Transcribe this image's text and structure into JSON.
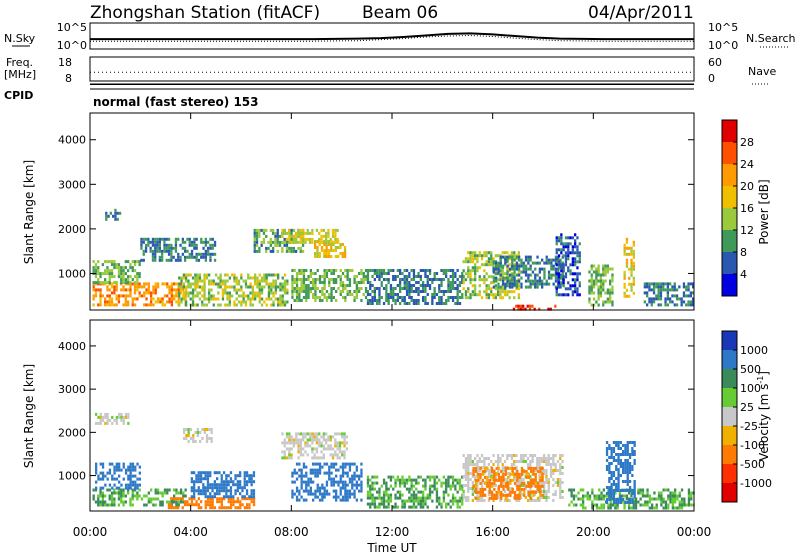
{
  "header": {
    "station": "Zhongshan Station (fitACF)",
    "beam": "Beam 06",
    "date": "04/Apr/2011"
  },
  "sky_panel": {
    "left_label": "N.Sky",
    "right_label": "N.Search",
    "left_ticks": [
      "10^5",
      "10^0"
    ],
    "right_ticks": [
      "10^5",
      "10^0"
    ],
    "series_sky": [
      1.9,
      1.9,
      1.9,
      1.9,
      1.9,
      1.9,
      1.9,
      1.9,
      1.9,
      1.9,
      1.9,
      1.95,
      2.0,
      2.1,
      2.3,
      2.6,
      2.9,
      3.0,
      2.8,
      2.5,
      2.2,
      2.0,
      1.95,
      1.9,
      1.9,
      1.9,
      1.9,
      1.9
    ],
    "series_search": [
      1.5,
      1.5,
      1.5,
      1.5,
      1.5,
      1.5,
      1.5,
      1.5,
      1.5,
      1.5,
      1.5,
      1.55,
      1.6,
      1.8,
      2.0,
      2.3,
      2.5,
      2.6,
      2.4,
      2.1,
      1.8,
      1.6,
      1.55,
      1.5,
      1.5,
      1.5,
      1.5,
      1.5
    ],
    "ylim": [
      0,
      5
    ]
  },
  "freq_panel": {
    "left_label_1": "Freq.",
    "left_label_2": "[MHz]",
    "right_label": "Nave",
    "left_ticks": [
      "18",
      "8"
    ],
    "right_ticks": [
      "60",
      "0"
    ],
    "freq_mhz": 10.0,
    "nave_dotted": 22,
    "ylim_freq": [
      8,
      18
    ],
    "ylim_nave": [
      0,
      60
    ]
  },
  "cpid": {
    "label": "CPID",
    "mode": "normal (fast stereo) 153"
  },
  "power_panel": {
    "ylabel": "Slant Range [km]",
    "yticks": [
      "4000",
      "3000",
      "2000",
      "1000"
    ],
    "ylim": [
      180,
      4600
    ],
    "colorbar_label": "Power [dB]",
    "colorbar_ticks": [
      "28",
      "24",
      "20",
      "16",
      "12",
      "8",
      "4"
    ],
    "colorbar_colors": [
      "#e00000",
      "#ff5000",
      "#ff9a00",
      "#f0c000",
      "#9cc83c",
      "#3f9a5a",
      "#2a58b0",
      "#0000e0"
    ]
  },
  "velocity_panel": {
    "ylabel": "Slant Range [km]",
    "yticks": [
      "4000",
      "3000",
      "2000",
      "1000"
    ],
    "ylim": [
      180,
      4600
    ],
    "colorbar_label": "Velocity [m s",
    "colorbar_label_sup": "-1",
    "colorbar_label_end": "]",
    "colorbar_ticks": [
      "1000",
      "500",
      "100",
      "25",
      "-25",
      "-100",
      "-500",
      "-1000"
    ],
    "colorbar_colors": [
      "#1838b8",
      "#2e78c8",
      "#3a8a5a",
      "#66cc33",
      "#c8c8c8",
      "#f0b000",
      "#ff7a00",
      "#ff3000",
      "#e00000"
    ]
  },
  "time_axis": {
    "xlabel": "Time UT",
    "ticks": [
      "00:00",
      "04:00",
      "08:00",
      "12:00",
      "16:00",
      "20:00",
      "00:00"
    ]
  },
  "chart_data": {
    "type": "heatmap",
    "title": "Zhongshan Station (fitACF)",
    "subtitle": "Beam 06",
    "xlabel": "Time UT",
    "x": [
      "00:00",
      "04:00",
      "08:00",
      "12:00",
      "16:00",
      "20:00",
      "00:00"
    ],
    "xlim_hours": [
      0,
      24
    ],
    "ylim_km": [
      180,
      4600
    ],
    "panels": [
      {
        "name": "Power [dB]",
        "ylabel": "Slant Range [km]",
        "color_scale": [
          4,
          8,
          12,
          16,
          20,
          24,
          28
        ],
        "blobs": [
          {
            "t0": 0.1,
            "t1": 3.8,
            "r0": 300,
            "r1": 800,
            "v": 22
          },
          {
            "t0": 0.1,
            "t1": 2.0,
            "r0": 800,
            "r1": 1300,
            "v": 12
          },
          {
            "t0": 0.6,
            "t1": 1.2,
            "r0": 2200,
            "r1": 2450,
            "v": 8
          },
          {
            "t0": 2.0,
            "t1": 5.0,
            "r0": 1300,
            "r1": 1800,
            "v": 8
          },
          {
            "t0": 3.5,
            "t1": 7.8,
            "r0": 300,
            "r1": 1000,
            "v": 14
          },
          {
            "t0": 6.5,
            "t1": 8.5,
            "r0": 1500,
            "r1": 2000,
            "v": 10
          },
          {
            "t0": 7.6,
            "t1": 9.8,
            "r0": 1700,
            "r1": 2000,
            "v": 16
          },
          {
            "t0": 8.9,
            "t1": 10.1,
            "r0": 1400,
            "r1": 1750,
            "v": 18
          },
          {
            "t0": 8.0,
            "t1": 11.0,
            "r0": 400,
            "r1": 1100,
            "v": 12
          },
          {
            "t0": 11.0,
            "t1": 14.8,
            "r0": 350,
            "r1": 1100,
            "v": 8
          },
          {
            "t0": 14.8,
            "t1": 17.0,
            "r0": 450,
            "r1": 1500,
            "v": 14
          },
          {
            "t0": 16.0,
            "t1": 18.8,
            "r0": 700,
            "r1": 1400,
            "v": 8
          },
          {
            "t0": 16.8,
            "t1": 18.5,
            "r0": 200,
            "r1": 300,
            "v": 28
          },
          {
            "t0": 18.5,
            "t1": 19.5,
            "r0": 500,
            "r1": 1900,
            "v": 6
          },
          {
            "t0": 19.8,
            "t1": 20.8,
            "r0": 300,
            "r1": 1200,
            "v": 12
          },
          {
            "t0": 21.2,
            "t1": 21.6,
            "r0": 400,
            "r1": 1800,
            "v": 18
          },
          {
            "t0": 22.0,
            "t1": 24.0,
            "r0": 300,
            "r1": 800,
            "v": 8
          }
        ]
      },
      {
        "name": "Velocity [m s-1]",
        "ylabel": "Slant Range [km]",
        "color_scale": [
          1000,
          500,
          100,
          25,
          -25,
          -100,
          -500,
          -1000
        ],
        "blobs": [
          {
            "t0": 0.1,
            "t1": 3.8,
            "r0": 300,
            "r1": 700,
            "v": 100
          },
          {
            "t0": 0.2,
            "t1": 2.0,
            "r0": 700,
            "r1": 1300,
            "v": 800
          },
          {
            "t0": 0.2,
            "t1": 1.5,
            "r0": 2200,
            "r1": 2450,
            "v": 0
          },
          {
            "t0": 3.0,
            "t1": 6.5,
            "r0": 250,
            "r1": 500,
            "v": -300
          },
          {
            "t0": 4.0,
            "t1": 6.5,
            "r0": 500,
            "r1": 1100,
            "v": 800
          },
          {
            "t0": 3.6,
            "t1": 4.8,
            "r0": 1800,
            "r1": 2100,
            "v": 0
          },
          {
            "t0": 7.6,
            "t1": 10.2,
            "r0": 1400,
            "r1": 2000,
            "v": 0
          },
          {
            "t0": 8.0,
            "t1": 10.8,
            "r0": 400,
            "r1": 1300,
            "v": 800
          },
          {
            "t0": 11.0,
            "t1": 14.8,
            "r0": 300,
            "r1": 1000,
            "v": 100
          },
          {
            "t0": 14.8,
            "t1": 18.8,
            "r0": 400,
            "r1": 1500,
            "v": 0
          },
          {
            "t0": 15.2,
            "t1": 18.0,
            "r0": 500,
            "r1": 1200,
            "v": -120
          },
          {
            "t0": 19.0,
            "t1": 24.0,
            "r0": 250,
            "r1": 700,
            "v": 100
          },
          {
            "t0": 20.5,
            "t1": 21.6,
            "r0": 400,
            "r1": 1800,
            "v": 800
          }
        ]
      }
    ]
  }
}
